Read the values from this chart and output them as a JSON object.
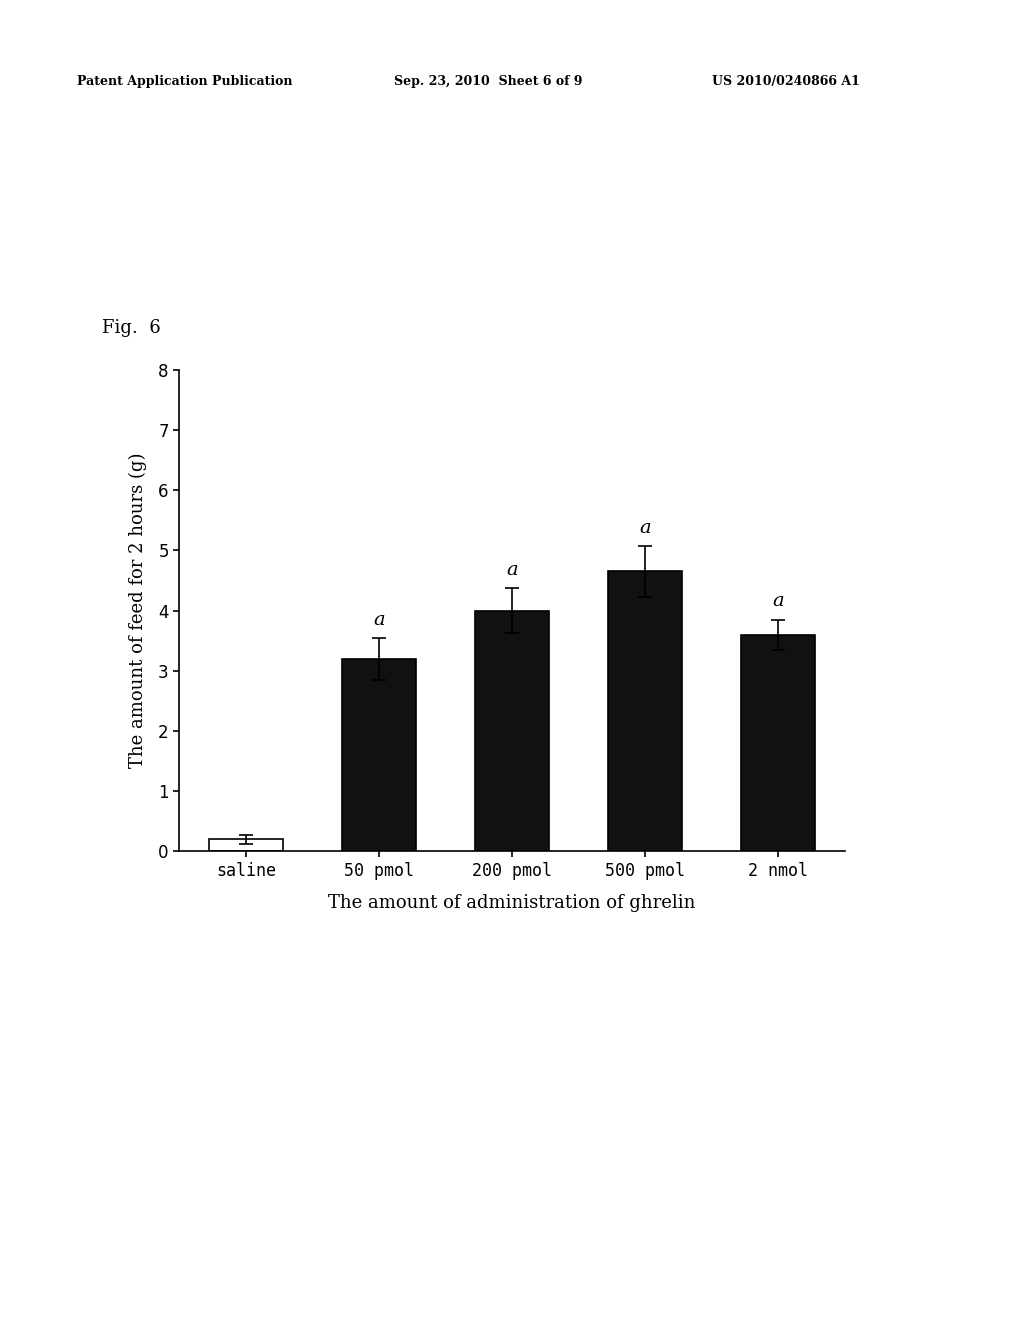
{
  "categories": [
    "saline",
    "50 pmol",
    "200 pmol",
    "500 pmol",
    "2 nmol"
  ],
  "values": [
    0.2,
    3.2,
    4.0,
    4.65,
    3.6
  ],
  "errors": [
    0.08,
    0.35,
    0.38,
    0.42,
    0.25
  ],
  "bar_colors": [
    "#ffffff",
    "#111111",
    "#111111",
    "#111111",
    "#111111"
  ],
  "bar_edge_colors": [
    "#000000",
    "#000000",
    "#000000",
    "#000000",
    "#000000"
  ],
  "significance_labels": [
    "",
    "a",
    "a",
    "a",
    "a"
  ],
  "ylabel": "The amount of feed for 2 hours (g)",
  "xlabel": "The amount of administration of ghrelin",
  "fig_label": "Fig.  6",
  "ylim": [
    0,
    8
  ],
  "yticks": [
    0,
    1,
    2,
    3,
    4,
    5,
    6,
    7,
    8
  ],
  "background_color": "#ffffff",
  "bar_width": 0.55,
  "label_fontsize": 13,
  "tick_fontsize": 12,
  "sig_fontsize": 14,
  "fig_label_fontsize": 13,
  "header_left": "Patent Application Publication",
  "header_mid": "Sep. 23, 2010  Sheet 6 of 9",
  "header_right": "US 2010/0240866 A1"
}
